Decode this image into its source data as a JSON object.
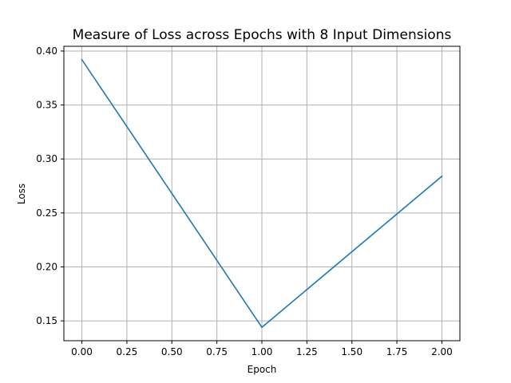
{
  "chart_data": {
    "type": "line",
    "title": "Measure of Loss across Epochs with 8 Input Dimensions",
    "xlabel": "Epoch",
    "ylabel": "Loss",
    "x": [
      0,
      1,
      2
    ],
    "series": [
      {
        "values": [
          0.392,
          0.144,
          0.284
        ],
        "color": "#1f77b4"
      }
    ],
    "xlim": [
      -0.1,
      2.1
    ],
    "ylim": [
      0.1316,
      0.4044
    ],
    "xticks": [
      0.0,
      0.25,
      0.5,
      0.75,
      1.0,
      1.25,
      1.5,
      1.75,
      2.0
    ],
    "xtick_labels": [
      "0.00",
      "0.25",
      "0.50",
      "0.75",
      "1.00",
      "1.25",
      "1.50",
      "1.75",
      "2.00"
    ],
    "yticks": [
      0.15,
      0.2,
      0.25,
      0.3,
      0.35,
      0.4
    ],
    "ytick_labels": [
      "0.15",
      "0.20",
      "0.25",
      "0.30",
      "0.35",
      "0.40"
    ],
    "grid": true,
    "legend": "none"
  }
}
